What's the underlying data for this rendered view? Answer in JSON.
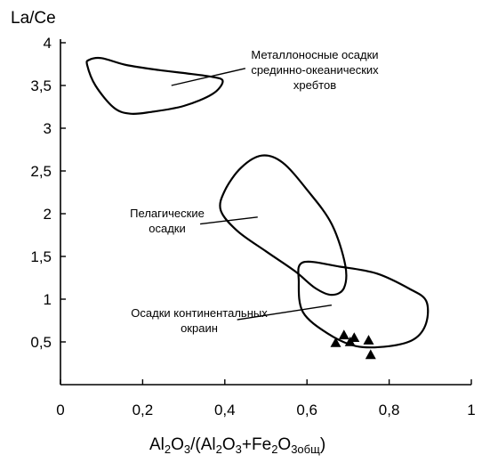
{
  "chart_data": {
    "type": "scatter",
    "title": "",
    "ylabel": "La/Ce",
    "xlabel": {
      "parts": [
        {
          "t": "Al",
          "sub": false
        },
        {
          "t": "2",
          "sub": true
        },
        {
          "t": "O",
          "sub": false
        },
        {
          "t": "3",
          "sub": true
        },
        {
          "t": "/(Al",
          "sub": false
        },
        {
          "t": "2",
          "sub": true
        },
        {
          "t": "O",
          "sub": false
        },
        {
          "t": "3",
          "sub": true
        },
        {
          "t": "+Fe",
          "sub": false
        },
        {
          "t": "2",
          "sub": true
        },
        {
          "t": "O",
          "sub": false
        },
        {
          "t": "3общ",
          "sub": true
        },
        {
          "t": ")",
          "sub": false
        }
      ]
    },
    "xlim": [
      0,
      1
    ],
    "ylim": [
      0,
      4
    ],
    "xticks": [
      {
        "v": 0,
        "label": "0"
      },
      {
        "v": 0.2,
        "label": "0,2"
      },
      {
        "v": 0.4,
        "label": "0,4"
      },
      {
        "v": 0.6,
        "label": "0,6"
      },
      {
        "v": 0.8,
        "label": "0,8"
      },
      {
        "v": 1,
        "label": "1"
      }
    ],
    "yticks": [
      {
        "v": 0.5,
        "label": "0,5"
      },
      {
        "v": 1,
        "label": "1"
      },
      {
        "v": 1.5,
        "label": "1,5"
      },
      {
        "v": 2,
        "label": "2"
      },
      {
        "v": 2.5,
        "label": "2,5"
      },
      {
        "v": 3,
        "label": "3"
      },
      {
        "v": 3.5,
        "label": "3,5"
      },
      {
        "v": 4,
        "label": "4"
      }
    ],
    "grid": false,
    "regions": [
      {
        "name": "metalliferous",
        "label_lines": [
          "Металлоносные осадки",
          "срединно-океанических",
          "хребтов"
        ],
        "outline": [
          [
            0.07,
            3.8
          ],
          [
            0.1,
            3.82
          ],
          [
            0.16,
            3.74
          ],
          [
            0.24,
            3.68
          ],
          [
            0.31,
            3.64
          ],
          [
            0.37,
            3.6
          ],
          [
            0.395,
            3.55
          ],
          [
            0.37,
            3.4
          ],
          [
            0.3,
            3.26
          ],
          [
            0.22,
            3.19
          ],
          [
            0.17,
            3.17
          ],
          [
            0.13,
            3.24
          ],
          [
            0.085,
            3.5
          ],
          [
            0.065,
            3.74
          ],
          [
            0.07,
            3.8
          ]
        ],
        "leader": [
          [
            0.27,
            3.5
          ],
          [
            0.45,
            3.7
          ]
        ]
      },
      {
        "name": "pelagic",
        "label_lines": [
          "Пелагические",
          "осадки"
        ],
        "outline": [
          [
            0.49,
            2.68
          ],
          [
            0.44,
            2.54
          ],
          [
            0.4,
            2.27
          ],
          [
            0.39,
            2.04
          ],
          [
            0.43,
            1.8
          ],
          [
            0.5,
            1.56
          ],
          [
            0.57,
            1.33
          ],
          [
            0.62,
            1.13
          ],
          [
            0.66,
            1.05
          ],
          [
            0.69,
            1.13
          ],
          [
            0.693,
            1.4
          ],
          [
            0.66,
            1.88
          ],
          [
            0.6,
            2.28
          ],
          [
            0.54,
            2.6
          ],
          [
            0.49,
            2.68
          ]
        ],
        "leader": [
          [
            0.34,
            1.88
          ],
          [
            0.48,
            1.96
          ]
        ]
      },
      {
        "name": "continental-margin",
        "label_lines": [
          "Осадки континентальных",
          "окраин"
        ],
        "outline": [
          [
            0.59,
            1.43
          ],
          [
            0.68,
            1.38
          ],
          [
            0.77,
            1.3
          ],
          [
            0.85,
            1.12
          ],
          [
            0.89,
            0.98
          ],
          [
            0.89,
            0.72
          ],
          [
            0.86,
            0.53
          ],
          [
            0.8,
            0.45
          ],
          [
            0.72,
            0.45
          ],
          [
            0.65,
            0.6
          ],
          [
            0.59,
            0.85
          ],
          [
            0.58,
            1.2
          ],
          [
            0.59,
            1.43
          ]
        ],
        "leader": [
          [
            0.43,
            0.76
          ],
          [
            0.66,
            0.93
          ]
        ]
      }
    ],
    "series": [
      {
        "marker": "triangle",
        "color": "#000000",
        "points": [
          {
            "x": 0.67,
            "y": 0.49
          },
          {
            "x": 0.69,
            "y": 0.58
          },
          {
            "x": 0.705,
            "y": 0.5
          },
          {
            "x": 0.715,
            "y": 0.55
          },
          {
            "x": 0.75,
            "y": 0.52
          },
          {
            "x": 0.755,
            "y": 0.35
          }
        ]
      }
    ]
  }
}
